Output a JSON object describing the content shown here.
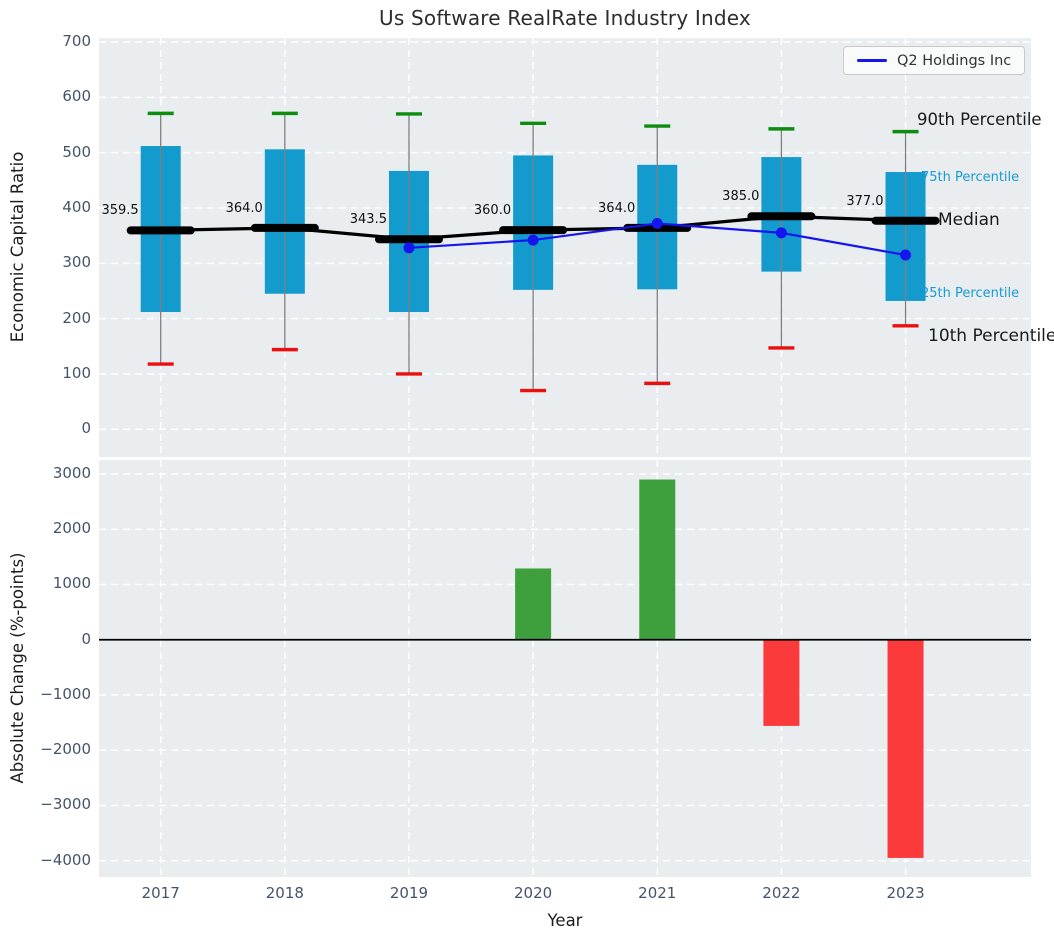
{
  "title": "Us Software RealRate Industry Index",
  "legend": {
    "label": "Q2 Holdings Inc"
  },
  "annotations": {
    "p90": "90th Percentile",
    "p75": "75th Percentile",
    "median": "Median",
    "p25": "25th Percentile",
    "p10": "10th Percentile"
  },
  "colors": {
    "box": "#149bcd",
    "whisker": "#7f7f7f",
    "cap_high": "#0e8c0e",
    "cap_low": "#ea1010",
    "median_line": "#000000",
    "overlay_line": "#1515ee",
    "bar_positive": "#3da03d",
    "bar_negative": "#fb3b3b",
    "axes_bg": "#e9edf0",
    "grid": "#ffffff",
    "tick_label": "#44546a",
    "percentile_label_cyan": "#169bd3"
  },
  "chart_data": [
    {
      "type": "boxplot",
      "title": "Us Software RealRate Industry Index",
      "ylabel": "Economic Capital Ratio",
      "categories": [
        "2017",
        "2018",
        "2019",
        "2020",
        "2021",
        "2022",
        "2023"
      ],
      "yticks": [
        700,
        600,
        500,
        400,
        300,
        200,
        100,
        0
      ],
      "ylim": [
        -40,
        707
      ],
      "grid": true,
      "legend_position": "upper right",
      "series": {
        "p90": [
          571,
          571,
          570,
          553,
          548,
          543,
          538
        ],
        "p75": [
          512,
          506,
          467,
          495,
          478,
          492,
          465
        ],
        "median": [
          359.5,
          364.0,
          343.5,
          360.0,
          364.0,
          385.0,
          377.0
        ],
        "p25": [
          212,
          245,
          212,
          252,
          253,
          285,
          232
        ],
        "p10": [
          118,
          144,
          100,
          70,
          83,
          147,
          187
        ]
      },
      "overlay_line": {
        "name": "Q2 Holdings Inc",
        "x": [
          "2019",
          "2020",
          "2021",
          "2022",
          "2023"
        ],
        "values": [
          328,
          342,
          372,
          355,
          315
        ]
      }
    },
    {
      "type": "bar",
      "ylabel": "Absolute Change (%-points)",
      "xlabel": "Year",
      "categories": [
        "2017",
        "2018",
        "2019",
        "2020",
        "2021",
        "2022",
        "2023"
      ],
      "values": [
        null,
        null,
        null,
        1290,
        2900,
        -1560,
        -3950
      ],
      "yticks": [
        3000,
        2000,
        1000,
        0,
        -1000,
        -2000,
        -3000,
        -4000
      ],
      "ylim": [
        -4300,
        3250
      ],
      "grid": true
    }
  ]
}
